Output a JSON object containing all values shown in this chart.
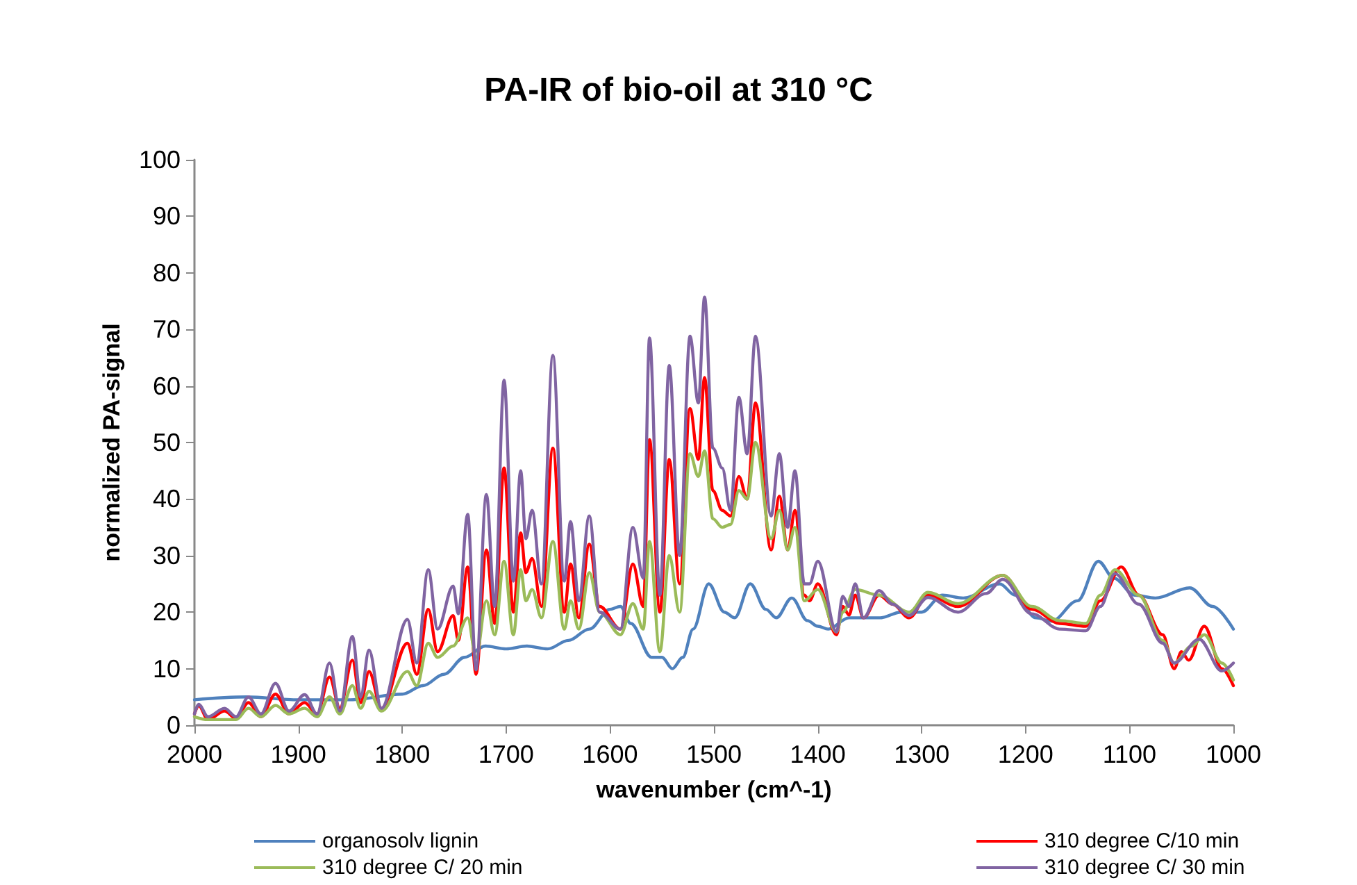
{
  "chart_data": {
    "type": "line",
    "title": "PA-IR of bio-oil at 310 °C",
    "xlabel": "wavenumber (cm^-1)",
    "ylabel": "normalized PA-signal",
    "xlim": [
      2000,
      1000
    ],
    "xticks": [
      2000,
      1900,
      1800,
      1700,
      1600,
      1500,
      1400,
      1300,
      1200,
      1100,
      1000
    ],
    "ylim": [
      0,
      100
    ],
    "yticks": [
      0,
      10,
      20,
      30,
      40,
      50,
      60,
      70,
      80,
      90,
      100
    ],
    "grid": false,
    "legend": "bottom",
    "marker": "none",
    "line_style": "solid",
    "series": [
      {
        "name": "organosolv lignin",
        "color": "#4f81bd",
        "x": [
          2000,
          1950,
          1900,
          1850,
          1800,
          1780,
          1760,
          1740,
          1720,
          1700,
          1680,
          1660,
          1640,
          1620,
          1600,
          1590,
          1580,
          1560,
          1550,
          1540,
          1530,
          1520,
          1505,
          1490,
          1480,
          1465,
          1450,
          1440,
          1425,
          1410,
          1400,
          1390,
          1370,
          1340,
          1320,
          1300,
          1280,
          1260,
          1225,
          1210,
          1190,
          1175,
          1150,
          1130,
          1115,
          1095,
          1075,
          1042,
          1020,
          1000
        ],
        "values": [
          4.5,
          5,
          4.5,
          4.5,
          5.5,
          7,
          9,
          12,
          14,
          13.5,
          14,
          13.5,
          15,
          17,
          20.5,
          21,
          18,
          12,
          12,
          10,
          12,
          17,
          25,
          20,
          19,
          25,
          20.5,
          19,
          22.5,
          18.5,
          17.5,
          17,
          19,
          19,
          20,
          20,
          23,
          22.5,
          25,
          23,
          19,
          18.4,
          22,
          29,
          26,
          23,
          22.5,
          24.3,
          21,
          17
        ]
      },
      {
        "name": "310 degree C/10 min",
        "color": "#ff0000",
        "x": [
          2000,
          1996,
          1987,
          1971,
          1960,
          1948,
          1936,
          1922,
          1909,
          1894,
          1882,
          1870,
          1860,
          1848,
          1840,
          1832,
          1820,
          1795,
          1786,
          1775,
          1766,
          1751,
          1746,
          1737,
          1729,
          1719,
          1711,
          1702,
          1693,
          1686,
          1681,
          1675,
          1666,
          1655,
          1644,
          1638,
          1630,
          1620,
          1610,
          1590,
          1578,
          1568,
          1562,
          1552,
          1543,
          1533,
          1523,
          1515,
          1509,
          1501,
          1492,
          1484,
          1476,
          1468,
          1460,
          1445,
          1437,
          1429,
          1422,
          1413,
          1408,
          1400,
          1382,
          1376,
          1370,
          1364,
          1356,
          1341,
          1328,
          1312,
          1294,
          1265,
          1222,
          1194,
          1167,
          1142,
          1128,
          1108,
          1091,
          1068,
          1057,
          1050,
          1043,
          1028,
          1011,
          1000
        ],
        "values": [
          2,
          3.5,
          1,
          2.5,
          1.2,
          4,
          1.5,
          5.5,
          2,
          4,
          2,
          8.5,
          3,
          11.5,
          4,
          9.5,
          3,
          14.5,
          9,
          20.5,
          13,
          19.4,
          15,
          28,
          9,
          31,
          18,
          45.5,
          20,
          34,
          27,
          29.5,
          21,
          49,
          20,
          28.5,
          19,
          32,
          21,
          17,
          28.5,
          21,
          50.5,
          20,
          47,
          25,
          56,
          47,
          61.5,
          41.5,
          38,
          37,
          44,
          40,
          57,
          31,
          40.5,
          31,
          38,
          23,
          22,
          25,
          16,
          21,
          19.5,
          23,
          19,
          23,
          21.4,
          19,
          23,
          21,
          26.5,
          20.5,
          18,
          17.5,
          22,
          28,
          23,
          16,
          10,
          13,
          11.5,
          17.5,
          10,
          7
        ]
      },
      {
        "name": "310 degree C/ 20 min",
        "color": "#9bbb59",
        "x": [
          2000,
          1987,
          1960,
          1948,
          1936,
          1922,
          1909,
          1894,
          1882,
          1870,
          1860,
          1848,
          1840,
          1832,
          1820,
          1795,
          1786,
          1775,
          1766,
          1751,
          1737,
          1729,
          1719,
          1711,
          1702,
          1693,
          1686,
          1681,
          1675,
          1666,
          1655,
          1644,
          1638,
          1630,
          1620,
          1610,
          1590,
          1578,
          1568,
          1562,
          1552,
          1543,
          1533,
          1523,
          1515,
          1509,
          1501,
          1492,
          1484,
          1476,
          1468,
          1460,
          1445,
          1437,
          1429,
          1422,
          1413,
          1400,
          1382,
          1376,
          1364,
          1341,
          1312,
          1294,
          1265,
          1222,
          1194,
          1167,
          1142,
          1128,
          1114,
          1091,
          1068,
          1057,
          1040,
          1028,
          1011,
          1000
        ],
        "values": [
          1.5,
          1,
          1,
          3,
          1.5,
          3.5,
          2,
          3,
          1.5,
          5,
          2,
          7,
          3,
          6,
          2.5,
          9.5,
          7,
          14.5,
          12,
          14,
          19,
          12,
          22,
          16,
          29,
          16,
          27.5,
          22,
          24,
          19,
          32.5,
          17,
          22,
          17,
          27,
          20,
          16,
          21.5,
          17,
          32.5,
          13,
          30,
          20,
          48,
          44,
          48.5,
          36.5,
          35,
          35.5,
          41.5,
          40,
          50,
          33,
          38,
          31,
          35,
          22,
          24,
          16.5,
          20,
          24,
          23,
          20,
          23.5,
          21.5,
          26.5,
          21,
          18.5,
          18,
          23,
          27.5,
          23,
          15,
          11,
          14,
          16,
          11,
          8
        ]
      },
      {
        "name": "310 degree C/ 30 min",
        "color": "#8064a2",
        "x": [
          2000,
          1996,
          1987,
          1971,
          1960,
          1948,
          1936,
          1922,
          1909,
          1894,
          1882,
          1870,
          1860,
          1848,
          1840,
          1832,
          1820,
          1795,
          1786,
          1775,
          1766,
          1751,
          1746,
          1737,
          1729,
          1719,
          1711,
          1702,
          1693,
          1686,
          1681,
          1675,
          1666,
          1655,
          1644,
          1638,
          1630,
          1620,
          1610,
          1590,
          1578,
          1568,
          1562,
          1552,
          1543,
          1533,
          1523,
          1515,
          1509,
          1501,
          1492,
          1484,
          1476,
          1468,
          1460,
          1445,
          1437,
          1429,
          1422,
          1413,
          1408,
          1400,
          1382,
          1376,
          1370,
          1364,
          1356,
          1341,
          1328,
          1312,
          1294,
          1265,
          1238,
          1222,
          1194,
          1167,
          1142,
          1128,
          1114,
          1091,
          1068,
          1057,
          1033,
          1011,
          1000
        ],
        "values": [
          2,
          3.7,
          1.5,
          3,
          1.5,
          5,
          2,
          7.4,
          2.5,
          5.4,
          2,
          11,
          2.5,
          15.7,
          5,
          13.3,
          3,
          18.7,
          11,
          27.5,
          17,
          24.6,
          19.7,
          37.3,
          9.8,
          40.8,
          21,
          61,
          25.5,
          45,
          33,
          38,
          25,
          65.4,
          25.5,
          36,
          22,
          37,
          20,
          17,
          35,
          26,
          68.5,
          23,
          63.6,
          30,
          68.8,
          57,
          75.7,
          49,
          45.5,
          38,
          58,
          48,
          68.8,
          37,
          48,
          35,
          45,
          25,
          25,
          29,
          16.5,
          22.8,
          21,
          25,
          19,
          23.8,
          21.4,
          19.4,
          22.6,
          20,
          23.3,
          25.8,
          19.7,
          17,
          16.7,
          21,
          26.8,
          21.4,
          14.5,
          11,
          15.2,
          9.6,
          11
        ]
      }
    ]
  }
}
